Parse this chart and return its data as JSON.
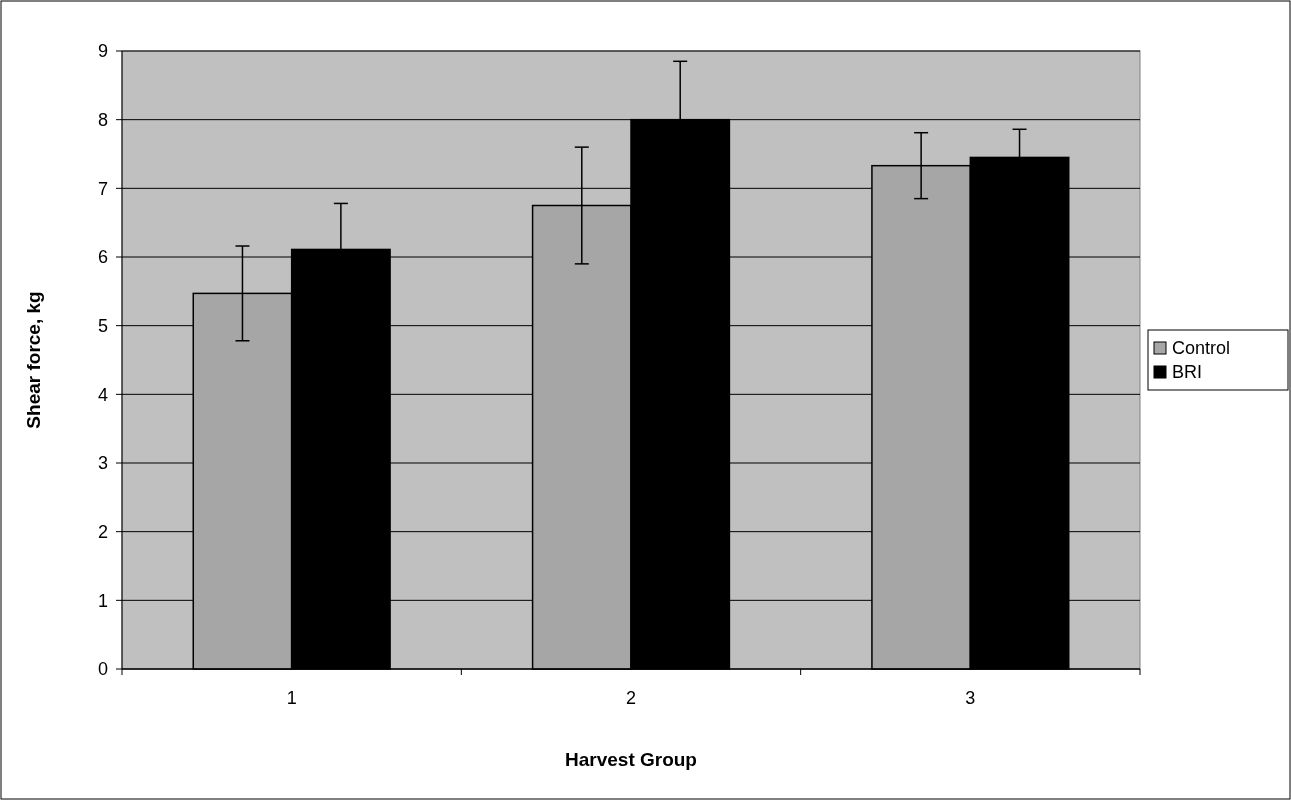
{
  "chart_data": {
    "type": "bar",
    "xlabel": "Harvest Group",
    "ylabel": "Shear force, kg",
    "categories": [
      "1",
      "2",
      "3"
    ],
    "series": [
      {
        "name": "Control",
        "color": "#a6a6a6",
        "values": [
          5.47,
          6.75,
          7.33
        ],
        "errors": [
          0.69,
          0.85,
          0.48
        ]
      },
      {
        "name": "BRI",
        "color": "#000000",
        "values": [
          6.11,
          8.0,
          7.45
        ],
        "errors": [
          0.67,
          0.85,
          0.41
        ]
      }
    ],
    "ylim": [
      0,
      9
    ],
    "yticks": [
      0,
      1,
      2,
      3,
      4,
      5,
      6,
      7,
      8,
      9
    ],
    "grid": "y",
    "legend": "right"
  }
}
